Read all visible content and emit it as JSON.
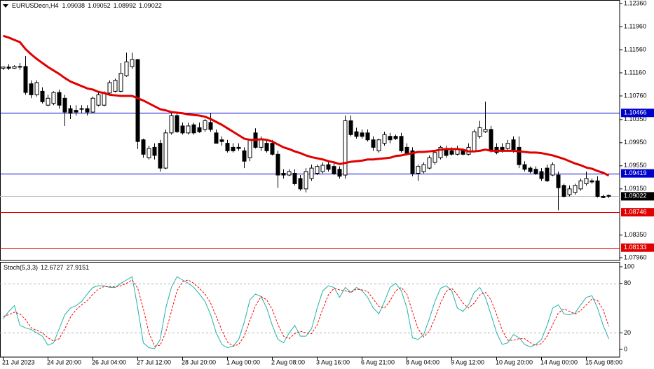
{
  "chart_data": [
    {
      "type": "candlestick",
      "symbol": "EURUSDecn,H4",
      "categories": [
        "21 Jul 2023",
        null,
        null,
        null,
        null,
        null,
        null,
        null,
        "24 Jul 20:00",
        null,
        null,
        null,
        null,
        null,
        null,
        null,
        "26 Jul 04:00",
        null,
        null,
        null,
        null,
        null,
        null,
        null,
        "27 Jul 12:00",
        null,
        null,
        null,
        null,
        null,
        null,
        null,
        "28 Jul 20:00",
        null,
        null,
        null,
        null,
        null,
        null,
        null,
        "1 Aug 00:00",
        null,
        null,
        null,
        null,
        null,
        null,
        null,
        "2 Aug 08:00",
        null,
        null,
        null,
        null,
        null,
        null,
        null,
        "3 Aug 16:00",
        null,
        null,
        null,
        null,
        null,
        null,
        null,
        "6 Aug 21:00",
        null,
        null,
        null,
        null,
        null,
        null,
        null,
        "8 Aug 04:00",
        null,
        null,
        null,
        null,
        null,
        null,
        null,
        "9 Aug 12:00",
        null,
        null,
        null,
        null,
        null,
        null,
        null,
        "10 Aug 20:00",
        null,
        null,
        null,
        null,
        null,
        null,
        null,
        "14 Aug 00:00",
        null,
        null,
        null,
        null,
        null,
        null,
        null,
        "15 Aug 08:00",
        null,
        null,
        null,
        null
      ],
      "open": [
        1.1124,
        1.1126,
        1.1124,
        1.1127,
        1.1127,
        1.1097,
        1.1078,
        1.1084,
        1.106,
        1.1063,
        1.1082,
        1.1072,
        1.1054,
        1.1051,
        1.1054,
        1.1054,
        1.1048,
        1.106,
        1.106,
        1.1081,
        1.1084,
        1.1084,
        1.1111,
        1.1127,
        1.1139,
        1.1,
        1.0969,
        1.0987,
        1.0994,
        1.0951,
        1.1012,
        1.1042,
        1.1024,
        1.1012,
        1.1026,
        1.1021,
        1.1018,
        1.103,
        1.1012,
        1.1,
        1.0994,
        1.0987,
        1.0987,
        1.0981,
        1.0969,
        1.1012,
        1.0987,
        1.0994,
        1.0994,
        1.0975,
        1.0942,
        1.0939,
        1.0942,
        1.0933,
        1.0915,
        1.0933,
        1.0942,
        1.0945,
        1.0957,
        1.0954,
        1.0949,
        1.0939,
        1.1033,
        1.1014,
        1.1012,
        1.1012,
        1.1,
        1.0981,
        1.0994,
        1.1006,
        1.1006,
        1.1006,
        1.0987,
        1.0981,
        1.0942,
        1.0945,
        1.0951,
        1.0961,
        1.0969,
        1.0985,
        1.0981,
        1.0975,
        1.0981,
        1.0975,
        1.0981,
        1.1006,
        1.1014,
        1.1018,
        1.0987,
        1.0987,
        1.0985,
        1.1,
        1.0987,
        1.0957,
        1.0951,
        1.0949,
        1.0945,
        1.0951,
        1.0939,
        1.0939,
        1.0921,
        1.0905,
        1.0909,
        1.0915,
        1.0924,
        1.0929,
        1.0929,
        1.0902,
        1.09038
      ],
      "high": [
        1.1127,
        1.1131,
        1.1129,
        1.1133,
        1.1145,
        1.1103,
        1.1103,
        1.1091,
        1.1078,
        1.1084,
        1.1087,
        1.1078,
        1.106,
        1.106,
        1.106,
        1.106,
        1.1075,
        1.1082,
        1.1084,
        1.1103,
        1.1106,
        1.1133,
        1.1151,
        1.1151,
        1.114,
        1.1002,
        1.099,
        1.0994,
        1.1,
        1.1018,
        1.1046,
        1.1046,
        1.103,
        1.103,
        1.103,
        1.103,
        1.1036,
        1.1046,
        1.1018,
        1.1006,
        1.1,
        1.0994,
        1.0994,
        1.0987,
        1.1002,
        1.102,
        1.1006,
        1.1,
        1.1,
        1.0981,
        1.0949,
        1.0949,
        1.0949,
        1.0939,
        1.0951,
        1.0957,
        1.0957,
        1.0961,
        1.0963,
        1.0961,
        1.0954,
        1.1042,
        1.1042,
        1.1021,
        1.1018,
        1.1018,
        1.1006,
        1.1002,
        1.1014,
        1.1012,
        1.1009,
        1.1012,
        1.0994,
        1.0987,
        1.0957,
        1.0961,
        1.0973,
        1.0981,
        1.099,
        1.099,
        1.0987,
        1.099,
        1.0985,
        1.0994,
        1.1018,
        1.1033,
        1.1066,
        1.1024,
        1.0994,
        1.0994,
        1.1,
        1.1006,
        1.1006,
        1.0963,
        1.0954,
        1.0954,
        1.0951,
        1.0957,
        1.0961,
        1.0945,
        1.0924,
        1.0921,
        1.0924,
        1.0933,
        1.0945,
        1.0933,
        1.0937,
        1.0905,
        1.09052
      ],
      "low": [
        1.1121,
        1.1121,
        1.1123,
        1.1121,
        1.1078,
        1.1072,
        1.1075,
        1.1063,
        1.1058,
        1.106,
        1.1054,
        1.1024,
        1.1036,
        1.1042,
        1.1046,
        1.1042,
        1.1046,
        1.1058,
        1.1058,
        1.1078,
        1.1082,
        1.1082,
        1.1109,
        1.1123,
        1.0984,
        1.0969,
        1.0966,
        1.0966,
        1.0945,
        1.0949,
        1.1009,
        1.1012,
        1.1009,
        1.1009,
        1.1009,
        1.1012,
        1.1014,
        1.1014,
        1.0994,
        1.099,
        1.0978,
        1.0978,
        1.0981,
        1.0951,
        1.0963,
        1.0985,
        1.0981,
        1.0978,
        1.0973,
        1.0917,
        1.0933,
        1.0937,
        1.0921,
        1.0912,
        1.0909,
        1.0929,
        1.0939,
        1.0942,
        1.0945,
        1.0939,
        1.0933,
        1.0933,
        1.1006,
        1.1002,
        1.1002,
        1.0997,
        1.0981,
        1.0978,
        1.099,
        1.0994,
        1.1,
        1.0978,
        1.0973,
        1.0937,
        1.0929,
        1.0942,
        1.0949,
        1.0957,
        1.0966,
        1.0969,
        1.0973,
        1.0973,
        1.0973,
        1.0973,
        1.0978,
        1.1002,
        1.1012,
        1.0978,
        1.0975,
        1.0978,
        1.0981,
        1.0978,
        1.0951,
        1.0945,
        1.0942,
        1.0939,
        1.0929,
        1.0927,
        1.0937,
        1.0878,
        1.09,
        1.0902,
        1.0905,
        1.0912,
        1.0921,
        1.0924,
        1.09,
        1.0899,
        1.08992
      ],
      "close": [
        1.1126,
        1.1124,
        1.1127,
        1.1126,
        1.1082,
        1.1078,
        1.1099,
        1.1066,
        1.1072,
        1.1082,
        1.106,
        1.1048,
        1.1046,
        1.1048,
        1.1054,
        1.1048,
        1.1072,
        1.1078,
        1.1082,
        1.1099,
        1.1103,
        1.1115,
        1.1135,
        1.1139,
        1.0997,
        1.0975,
        1.0985,
        1.0973,
        1.0951,
        1.1012,
        1.1042,
        1.1014,
        1.1012,
        1.1024,
        1.1012,
        1.1014,
        1.1033,
        1.1018,
        1.0994,
        1.0997,
        1.0981,
        1.0981,
        1.0985,
        1.0963,
        1.1,
        1.0987,
        1.1002,
        1.0981,
        1.0975,
        1.0939,
        1.0939,
        1.0945,
        1.0924,
        1.0915,
        1.0945,
        1.0951,
        1.0954,
        1.0956,
        1.0949,
        1.0942,
        1.0937,
        1.1033,
        1.1009,
        1.1006,
        1.1006,
        1.1,
        1.0987,
        1.1,
        1.1009,
        1.1,
        1.1002,
        1.0981,
        1.0975,
        1.0942,
        1.0954,
        1.0957,
        1.0969,
        1.0978,
        1.0987,
        1.0973,
        1.0975,
        1.0985,
        1.0975,
        1.0987,
        1.1014,
        1.1021,
        1.1018,
        1.0981,
        1.0978,
        1.0981,
        1.0994,
        1.0981,
        1.0957,
        1.0949,
        1.0945,
        1.0942,
        1.0933,
        1.0929,
        1.0957,
        1.0917,
        1.0902,
        1.0915,
        1.0921,
        1.0929,
        1.0933,
        1.0927,
        1.0902,
        1.09,
        1.09022
      ],
      "up_color": "#ffffff",
      "down_color": "#000000",
      "ma": {
        "color": "#e00000",
        "values": [
          1.118,
          1.1177,
          1.1173,
          1.1169,
          1.1157,
          1.1148,
          1.114,
          1.1133,
          1.1126,
          1.112,
          1.1114,
          1.1107,
          1.1101,
          1.1097,
          1.1093,
          1.1089,
          1.1087,
          1.1083,
          1.1081,
          1.1078,
          1.1077,
          1.1076,
          1.1076,
          1.1076,
          1.1072,
          1.1068,
          1.1063,
          1.1058,
          1.1053,
          1.1051,
          1.1048,
          1.1047,
          1.1046,
          1.1044,
          1.1043,
          1.1042,
          1.104,
          1.1036,
          1.1031,
          1.1026,
          1.102,
          1.1014,
          1.1008,
          1.1002,
          1.1,
          1.1,
          1.1001,
          1.1,
          1.0997,
          1.0992,
          1.0987,
          1.0984,
          1.098,
          1.0977,
          1.0973,
          1.097,
          1.0968,
          1.0966,
          1.0963,
          1.0961,
          1.0958,
          1.096,
          1.0962,
          1.0963,
          1.0964,
          1.0966,
          1.0966,
          1.0967,
          1.0968,
          1.0969,
          1.0972,
          1.0973,
          1.0975,
          1.0977,
          1.0979,
          1.0979,
          1.098,
          1.0981,
          1.0983,
          1.0984,
          1.0984,
          1.0984,
          1.0983,
          1.098,
          1.098,
          1.0981,
          1.0983,
          1.0981,
          1.0981,
          1.0981,
          1.0981,
          1.0981,
          1.098,
          1.0979,
          1.0978,
          1.0978,
          1.0977,
          1.0975,
          1.0973,
          1.097,
          1.0967,
          1.0963,
          1.0959,
          1.0956,
          1.0952,
          1.095,
          1.0946,
          1.0943,
          1.0938
        ]
      },
      "hlines": [
        {
          "value": 1.10466,
          "color": "#0000cc"
        },
        {
          "value": 1.09419,
          "color": "#0000cc"
        },
        {
          "value": 1.08746,
          "color": "#e00000"
        },
        {
          "value": 1.08133,
          "color": "#e00000"
        }
      ],
      "price_line_color": "#c0c0c0",
      "ylim": [
        1.07911,
        1.12421
      ],
      "yticks": [
        {
          "value": 1.1236,
          "label": "1.12360"
        },
        {
          "value": 1.1196,
          "label": "1.11960"
        },
        {
          "value": 1.1156,
          "label": "1.11560"
        },
        {
          "value": 1.1116,
          "label": "1.11160"
        },
        {
          "value": 1.1076,
          "label": "1.10760"
        },
        {
          "value": 1.1035,
          "label": "1.10350"
        },
        {
          "value": 1.0995,
          "label": "1.09950"
        },
        {
          "value": 1.0955,
          "label": "1.09550"
        },
        {
          "value": 1.0915,
          "label": "1.09150"
        },
        {
          "value": 1.0835,
          "label": "1.08350"
        },
        {
          "value": 1.0796,
          "label": "1.07960"
        }
      ]
    },
    {
      "type": "line",
      "name": "Stoch(5,3,3)",
      "ylim": [
        -9.32,
        105.08
      ],
      "yticks": [
        100,
        80,
        20,
        0
      ],
      "levels": [
        80,
        20
      ],
      "level_color": "#b0b0b0",
      "series": [
        {
          "color": "#20b2aa",
          "values": [
            37,
            46,
            53,
            29,
            26,
            24,
            20,
            16,
            5,
            8,
            25,
            42,
            50,
            53,
            58,
            67,
            75,
            77,
            77,
            75,
            75,
            80,
            84,
            88,
            50,
            8,
            2,
            1,
            12,
            50,
            75,
            88,
            84,
            80,
            75,
            67,
            58,
            42,
            20,
            6,
            2,
            4,
            12,
            33,
            60,
            67,
            64,
            50,
            29,
            12,
            8,
            20,
            29,
            16,
            16,
            25,
            50,
            71,
            77,
            75,
            63,
            75,
            69,
            75,
            71,
            63,
            50,
            43,
            58,
            75,
            80,
            71,
            50,
            14,
            12,
            18,
            37,
            58,
            74,
            77,
            71,
            50,
            46,
            54,
            69,
            75,
            63,
            42,
            20,
            6,
            8,
            18,
            14,
            6,
            3,
            6,
            12,
            29,
            50,
            54,
            43,
            42,
            44,
            54,
            63,
            65,
            50,
            29,
            12.6727
          ]
        },
        {
          "color": "#ff0000",
          "dash": true,
          "values": [
            40,
            42,
            45,
            43,
            36,
            26,
            23,
            20,
            14,
            10,
            13,
            25,
            39,
            48,
            54,
            59,
            67,
            73,
            76,
            76,
            76,
            77,
            80,
            84,
            74,
            49,
            20,
            4,
            5,
            21,
            46,
            71,
            82,
            84,
            80,
            74,
            67,
            56,
            40,
            23,
            9,
            4,
            6,
            16,
            35,
            53,
            64,
            60,
            48,
            30,
            16,
            13,
            19,
            22,
            20,
            19,
            30,
            49,
            66,
            74,
            72,
            71,
            69,
            73,
            72,
            70,
            61,
            52,
            50,
            59,
            71,
            75,
            67,
            45,
            25,
            15,
            22,
            38,
            56,
            70,
            74,
            66,
            56,
            50,
            56,
            66,
            69,
            60,
            42,
            23,
            11,
            11,
            13,
            13,
            8,
            5,
            7,
            16,
            30,
            44,
            49,
            46,
            43,
            47,
            54,
            61,
            59,
            48,
            27.9151
          ]
        }
      ]
    }
  ]
}
